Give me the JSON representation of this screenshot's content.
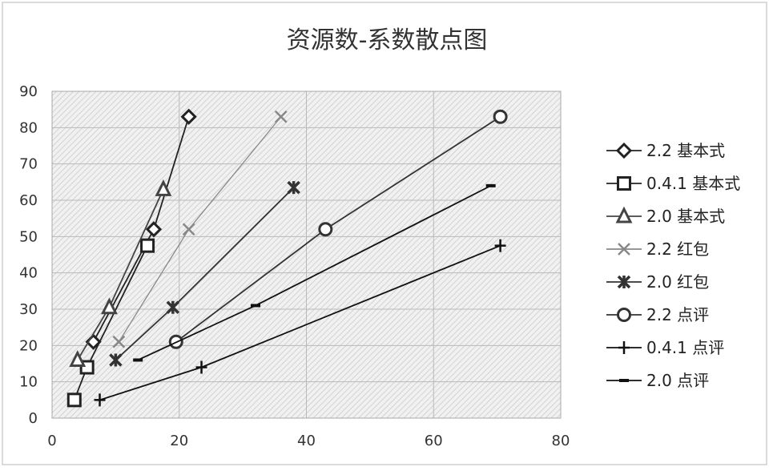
{
  "chart_data": {
    "type": "scatter",
    "title": "资源数-系数散点图",
    "xlabel": "",
    "ylabel": "",
    "xlim": [
      0,
      80
    ],
    "ylim": [
      0,
      90
    ],
    "xticks": [
      "0",
      "20",
      "40",
      "60",
      "80"
    ],
    "yticks": [
      "0",
      "10",
      "20",
      "30",
      "40",
      "50",
      "60",
      "70",
      "80",
      "90"
    ],
    "grid": true,
    "legend_position": "right",
    "series": [
      {
        "name": "2.2 基本式",
        "marker": "diamond",
        "color": "#222222",
        "x": [
          6.5,
          16,
          21.5
        ],
        "y": [
          21,
          52,
          83
        ]
      },
      {
        "name": "0.4.1 基本式",
        "marker": "square",
        "color": "#222222",
        "x": [
          3.5,
          5.5,
          15
        ],
        "y": [
          5,
          14,
          47.5
        ]
      },
      {
        "name": "2.0 基本式",
        "marker": "triangle",
        "color": "#444444",
        "x": [
          4,
          9,
          17.5
        ],
        "y": [
          16,
          30.5,
          63
        ]
      },
      {
        "name": "2.2 红包",
        "marker": "x",
        "color": "#888888",
        "x": [
          10.5,
          21.5,
          36
        ],
        "y": [
          21,
          52,
          83
        ]
      },
      {
        "name": "2.0 红包",
        "marker": "star",
        "color": "#333333",
        "x": [
          10,
          19,
          38
        ],
        "y": [
          16,
          30.5,
          63.5
        ]
      },
      {
        "name": "2.2 点评",
        "marker": "circle",
        "color": "#333333",
        "x": [
          19.5,
          43,
          70.5
        ],
        "y": [
          21,
          52,
          83
        ]
      },
      {
        "name": "0.4.1 点评",
        "marker": "plus",
        "color": "#111111",
        "x": [
          7.5,
          23.5,
          70.5
        ],
        "y": [
          5,
          14,
          47.5
        ]
      },
      {
        "name": "2.0 点评",
        "marker": "dash",
        "color": "#111111",
        "x": [
          13.5,
          32,
          69
        ],
        "y": [
          16,
          31,
          64
        ]
      }
    ]
  }
}
